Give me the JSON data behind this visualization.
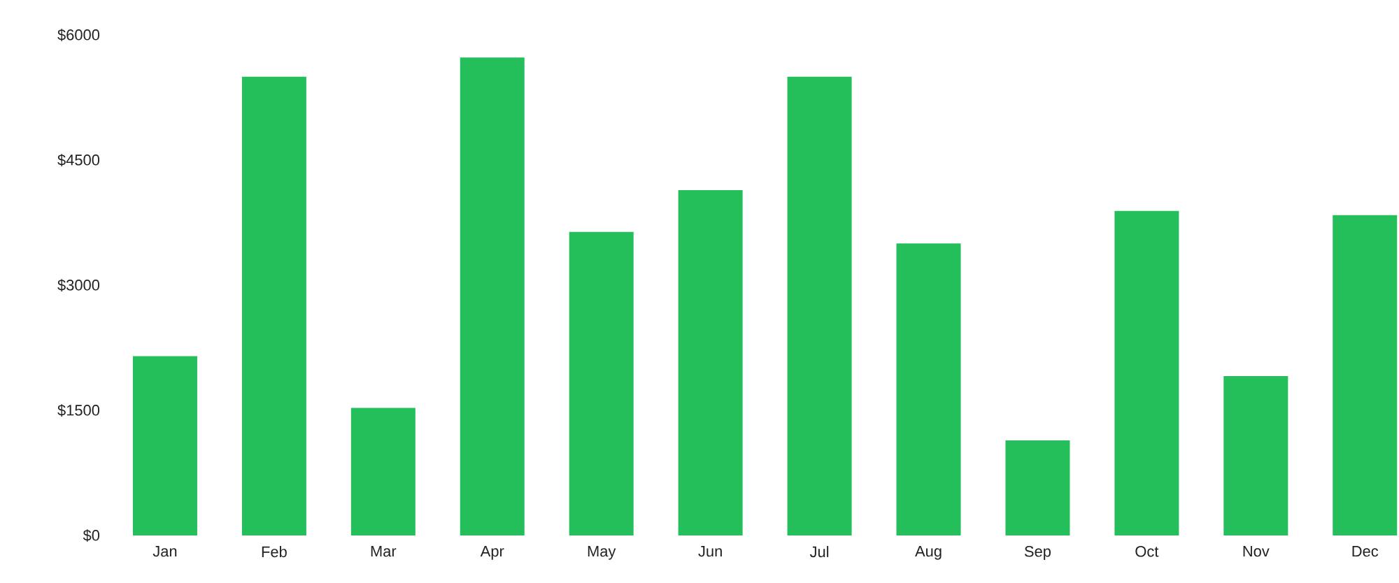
{
  "chart_data": {
    "type": "bar",
    "categories": [
      "Jan",
      "Feb",
      "Mar",
      "Apr",
      "May",
      "Jun",
      "Jul",
      "Aug",
      "Sep",
      "Oct",
      "Nov",
      "Dec"
    ],
    "values": [
      2150,
      5500,
      1530,
      5730,
      3640,
      4140,
      5500,
      3500,
      1140,
      3890,
      1910,
      3840
    ],
    "color": "#24bf5b",
    "ylim": [
      0,
      6000
    ],
    "yticks": [
      {
        "value": 0,
        "label": "$0"
      },
      {
        "value": 1500,
        "label": "$1500"
      },
      {
        "value": 3000,
        "label": "$3000"
      },
      {
        "value": 4500,
        "label": "$4500"
      },
      {
        "value": 6000,
        "label": "$6000"
      }
    ]
  }
}
